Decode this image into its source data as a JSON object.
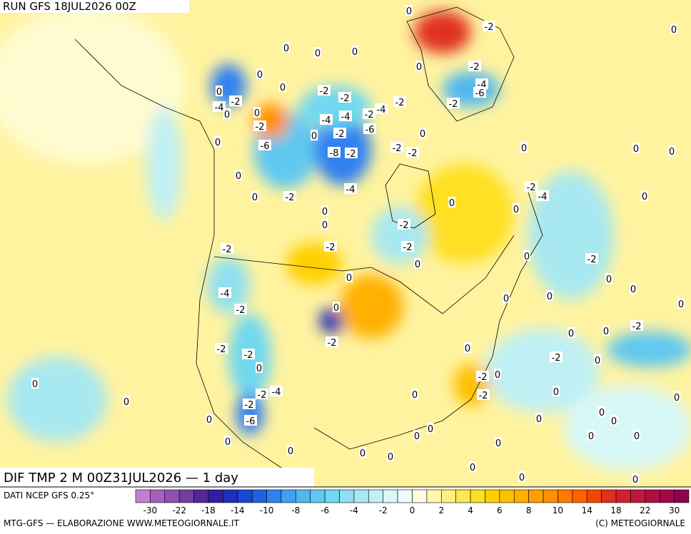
{
  "header": {
    "run": "RUN GFS 18JUL2026 00Z"
  },
  "map": {
    "field_label": "DIF TMP 2 M 00Z31JUL2026 — 1 day",
    "contour_labels": [
      0,
      -2,
      0,
      0,
      0,
      0,
      0,
      -2,
      0,
      -4,
      -6,
      0,
      -2,
      -4,
      -2,
      -2,
      0,
      -2,
      -4,
      -2,
      0,
      0,
      -4,
      -4,
      -2,
      -2,
      -6,
      0,
      0,
      -2,
      0,
      -6,
      -2,
      -2,
      0,
      0,
      0,
      -8,
      -2,
      0,
      -4,
      -2,
      -4,
      0,
      -2,
      0,
      0,
      0,
      0,
      -2,
      0,
      -2,
      -2,
      -2,
      0,
      -2,
      0,
      0,
      0,
      -4,
      0,
      0,
      0,
      0,
      -2,
      0,
      -2,
      0,
      0,
      -2,
      -2,
      -2,
      0,
      -2,
      0,
      0,
      -2,
      0,
      -4,
      -2,
      -2,
      0,
      0,
      0,
      0,
      -2,
      0,
      0,
      -6,
      0,
      0,
      0,
      0,
      0,
      0,
      0,
      0,
      0,
      0,
      0,
      0,
      0,
      0,
      0
    ]
  },
  "colorbar": {
    "source": "DATI NCEP GFS 0.25°",
    "colors": [
      "#c080d0",
      "#a860c0",
      "#9050b0",
      "#7040a0",
      "#502898",
      "#3020a0",
      "#2030b8",
      "#1848d0",
      "#2060e0",
      "#3080f0",
      "#40a0f0",
      "#50b8f0",
      "#60c8f0",
      "#70d8f0",
      "#90e0f0",
      "#a8e8f0",
      "#c0f0f4",
      "#d8f8f8",
      "#f0fcfc",
      "#fffce0",
      "#fff8b0",
      "#fff080",
      "#ffe850",
      "#ffe020",
      "#ffd000",
      "#ffc000",
      "#ffb000",
      "#ffa000",
      "#ff9000",
      "#ff7800",
      "#ff6000",
      "#f04800",
      "#e03020",
      "#d02030",
      "#c01838",
      "#b01040",
      "#a00848",
      "#900050"
    ],
    "labels": [
      -30,
      -22,
      -18,
      -14,
      -10,
      -8,
      -6,
      -4,
      -2,
      0,
      2,
      4,
      6,
      8,
      10,
      14,
      18,
      22,
      30
    ]
  },
  "footer": {
    "left": "MTG-GFS — ELABORAZIONE WWW.METEOGIORNALE.IT",
    "right": "(C) METEOGIORNALE"
  }
}
